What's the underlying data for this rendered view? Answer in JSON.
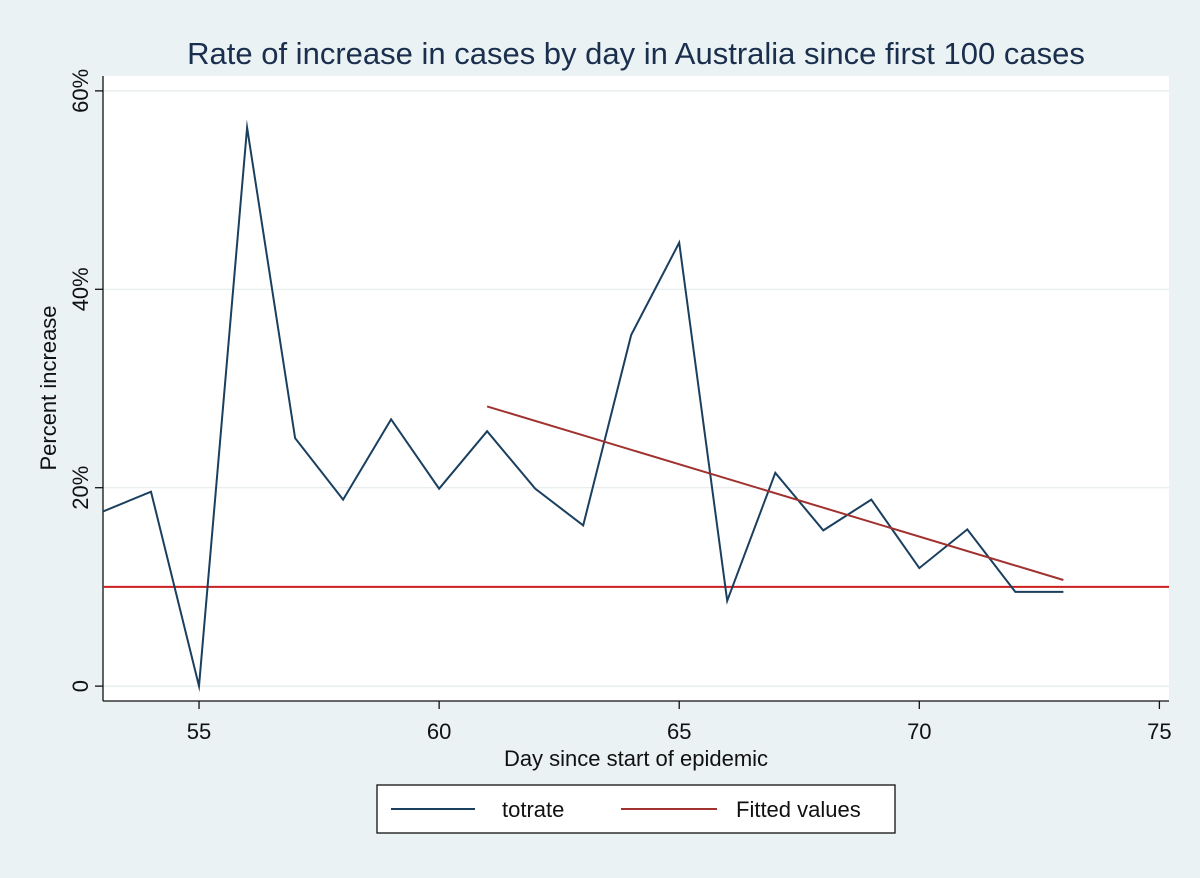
{
  "chart_data": {
    "type": "line",
    "title": "Rate of increase in cases by day in Australia since first 100 cases",
    "xlabel": "Day since start of epidemic",
    "ylabel": "Percent increase",
    "xlim": [
      53,
      75.2
    ],
    "ylim": [
      -1.5,
      61.5
    ],
    "x_ticks": [
      {
        "value": 55,
        "label": "55"
      },
      {
        "value": 60,
        "label": "60"
      },
      {
        "value": 65,
        "label": "65"
      },
      {
        "value": 70,
        "label": "70"
      },
      {
        "value": 75,
        "label": "75"
      }
    ],
    "y_ticks": [
      {
        "value": 0,
        "label": "0"
      },
      {
        "value": 20,
        "label": "20%"
      },
      {
        "value": 40,
        "label": "40%"
      },
      {
        "value": 60,
        "label": "60%"
      }
    ],
    "grid": "horizontal",
    "series": [
      {
        "name": "totrate",
        "color": "#1A3F5F",
        "x": [
          53,
          54,
          55,
          56,
          57,
          58,
          59,
          60,
          61,
          62,
          63,
          64,
          65,
          66,
          67,
          68,
          69,
          70,
          71,
          72,
          73
        ],
        "values": [
          17.6,
          19.6,
          0.0,
          56.3,
          25.0,
          18.8,
          26.9,
          19.9,
          25.7,
          19.9,
          16.2,
          35.4,
          44.7,
          8.6,
          21.5,
          15.7,
          18.8,
          11.9,
          15.8,
          9.5,
          9.5
        ]
      },
      {
        "name": "Fitted values",
        "color": "#A0322F",
        "x": [
          61,
          73
        ],
        "values": [
          28.2,
          10.7
        ]
      }
    ],
    "reference_lines": [
      {
        "axis": "y",
        "value": 10,
        "color": "#CC1F1F"
      }
    ],
    "legend": {
      "position": "bottom",
      "entries": [
        {
          "label": "totrate",
          "color": "#1A3F5F"
        },
        {
          "label": "Fitted values",
          "color": "#A0322F"
        }
      ]
    }
  }
}
